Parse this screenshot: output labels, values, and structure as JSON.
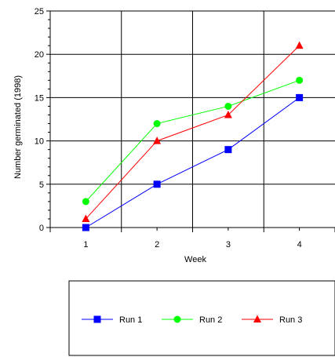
{
  "chart_data": {
    "type": "line",
    "title": "",
    "xlabel": "Week",
    "ylabel": "Number germinated (1998)",
    "x": [
      1,
      2,
      3,
      4
    ],
    "xticks": [
      "1",
      "2",
      "3",
      "4"
    ],
    "xlim": [
      0.5,
      4.5
    ],
    "ylim": [
      0,
      25
    ],
    "yticks": [
      "0",
      "5",
      "10",
      "15",
      "20",
      "25"
    ],
    "grid": true,
    "legend_position": "bottom",
    "series": [
      {
        "name": "Run 1",
        "values": [
          0,
          5,
          9,
          15
        ],
        "color": "#0000ff",
        "marker": "square"
      },
      {
        "name": "Run 2",
        "values": [
          3,
          12,
          14,
          17
        ],
        "color": "#00ff00",
        "marker": "circle"
      },
      {
        "name": "Run 3",
        "values": [
          1,
          10,
          13,
          21
        ],
        "color": "#ff0000",
        "marker": "triangle"
      }
    ]
  }
}
